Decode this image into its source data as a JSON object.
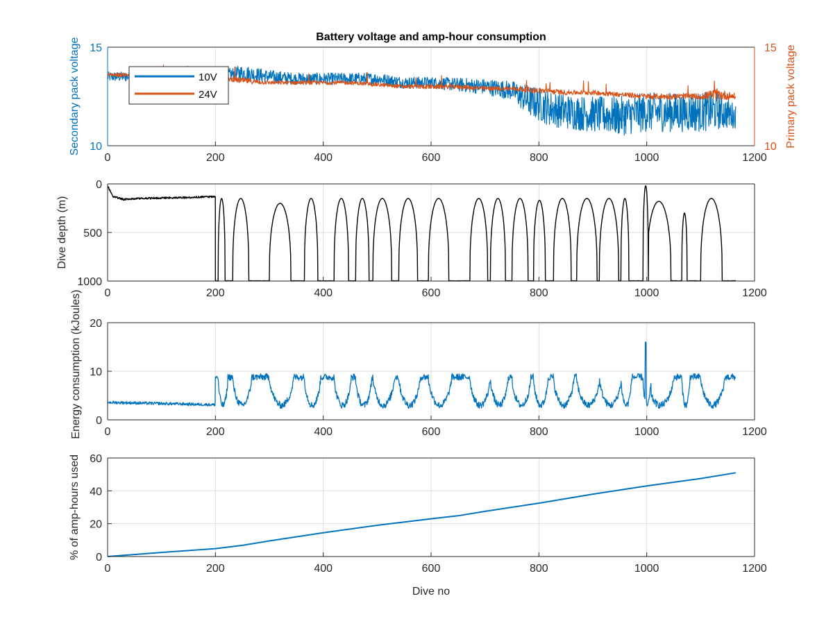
{
  "figure_title": "Battery voltage and amp-hour consumption",
  "colors": {
    "blue": "#0072BD",
    "orange": "#D95319",
    "black": "#000000",
    "axis": "#262626",
    "grid": "#dfdfdf"
  },
  "chart_data": [
    {
      "type": "line",
      "title": "Battery voltage and amp-hour consumption",
      "xlabel": "",
      "ylabel_left": "Secondary pack voltage",
      "ylabel_right": "Primary pack voltage",
      "xlim": [
        0,
        1200
      ],
      "ylim_left": [
        10,
        15
      ],
      "ylim_right": [
        10,
        15
      ],
      "xticks": [
        "0",
        "200",
        "400",
        "600",
        "800",
        "1000",
        "1200"
      ],
      "yticks_left": [
        "10",
        "15"
      ],
      "yticks_right": [
        "10",
        "15"
      ],
      "grid": true,
      "legend": {
        "placement": "top-left",
        "entries": [
          "10V",
          "24V"
        ]
      },
      "series": [
        {
          "name": "10V",
          "axis": "left",
          "color": "#0072BD",
          "x": [
            0,
            50,
            100,
            150,
            200,
            250,
            300,
            350,
            400,
            450,
            500,
            550,
            600,
            650,
            700,
            750,
            780,
            820,
            860,
            900,
            950,
            1000,
            1050,
            1100,
            1130,
            1165
          ],
          "y": [
            13.5,
            13.5,
            13.5,
            13.5,
            13.5,
            13.7,
            13.5,
            13.4,
            13.4,
            13.4,
            13.4,
            13.2,
            13.2,
            13.1,
            13.0,
            12.8,
            12.3,
            11.9,
            11.7,
            11.6,
            11.5,
            11.7,
            11.7,
            11.7,
            11.8,
            11.5
          ],
          "noise": [
            0.25,
            0.25,
            0.25,
            0.25,
            0.25,
            0.4,
            0.35,
            0.3,
            0.3,
            0.3,
            0.3,
            0.3,
            0.3,
            0.35,
            0.4,
            0.5,
            0.8,
            0.9,
            0.9,
            0.9,
            1.0,
            1.0,
            1.0,
            1.0,
            1.0,
            0.6
          ]
        },
        {
          "name": "24V",
          "axis": "right",
          "color": "#D95319",
          "x": [
            0,
            50,
            100,
            150,
            200,
            250,
            300,
            350,
            400,
            450,
            500,
            550,
            600,
            650,
            700,
            750,
            800,
            850,
            900,
            950,
            1000,
            1050,
            1100,
            1130,
            1165
          ],
          "y": [
            13.6,
            13.6,
            13.5,
            13.5,
            13.5,
            13.3,
            13.2,
            13.2,
            13.2,
            13.2,
            13.1,
            13.0,
            13.0,
            13.0,
            12.9,
            12.9,
            12.8,
            12.7,
            12.7,
            12.6,
            12.5,
            12.5,
            12.5,
            12.6,
            12.5
          ],
          "noise": [
            0.1,
            0.1,
            0.1,
            0.1,
            0.1,
            0.15,
            0.1,
            0.1,
            0.1,
            0.1,
            0.1,
            0.1,
            0.12,
            0.12,
            0.12,
            0.12,
            0.15,
            0.12,
            0.12,
            0.12,
            0.15,
            0.15,
            0.15,
            0.3,
            0.15
          ]
        }
      ]
    },
    {
      "type": "line",
      "title": "",
      "xlabel": "",
      "ylabel": "Dive depth (m)",
      "xlim": [
        0,
        1200
      ],
      "ylim": [
        1000,
        0
      ],
      "y_reversed": true,
      "xticks": [
        "0",
        "200",
        "400",
        "600",
        "800",
        "1000",
        "1200"
      ],
      "yticks": [
        "0",
        "500",
        "1000"
      ],
      "grid": true,
      "series": [
        {
          "name": "",
          "color": "#000000",
          "surface_segment": {
            "x": [
              0,
              10,
              30,
              60,
              100,
              150,
              200
            ],
            "y": [
              20,
              130,
              160,
              150,
              145,
              140,
              130
            ]
          },
          "dive_profile": {
            "shallow": 150,
            "deep": 1000
          },
          "dives": [
            {
              "start": 205,
              "end": 218,
              "min": 150
            },
            {
              "start": 232,
              "end": 262,
              "min": 150
            },
            {
              "start": 300,
              "end": 340,
              "min": 200
            },
            {
              "start": 365,
              "end": 390,
              "min": 150
            },
            {
              "start": 420,
              "end": 447,
              "min": 150
            },
            {
              "start": 460,
              "end": 485,
              "min": 150
            },
            {
              "start": 492,
              "end": 527,
              "min": 150
            },
            {
              "start": 540,
              "end": 575,
              "min": 150
            },
            {
              "start": 595,
              "end": 633,
              "min": 150
            },
            {
              "start": 672,
              "end": 705,
              "min": 150
            },
            {
              "start": 710,
              "end": 738,
              "min": 150
            },
            {
              "start": 750,
              "end": 780,
              "min": 150
            },
            {
              "start": 790,
              "end": 812,
              "min": 170
            },
            {
              "start": 827,
              "end": 860,
              "min": 150
            },
            {
              "start": 870,
              "end": 908,
              "min": 150
            },
            {
              "start": 912,
              "end": 948,
              "min": 150
            },
            {
              "start": 952,
              "end": 967,
              "min": 150
            },
            {
              "start": 993,
              "end": 1003,
              "min": 20
            },
            {
              "start": 1000,
              "end": 1045,
              "min": 180
            },
            {
              "start": 1065,
              "end": 1075,
              "min": 300
            },
            {
              "start": 1100,
              "end": 1140,
              "min": 150
            }
          ],
          "x_end": 1165
        }
      ]
    },
    {
      "type": "line",
      "title": "",
      "xlabel": "",
      "ylabel": "Energy consumption (kJoules)",
      "xlim": [
        0,
        1200
      ],
      "ylim": [
        0,
        20
      ],
      "xticks": [
        "0",
        "200",
        "400",
        "600",
        "800",
        "1000",
        "1200"
      ],
      "yticks": [
        "0",
        "10",
        "20"
      ],
      "grid": true,
      "series": [
        {
          "name": "",
          "color": "#0072BD",
          "baseline_segment": {
            "x": [
              0,
              200
            ],
            "y": [
              3.6,
              3.1
            ],
            "noise": 0.3
          },
          "active_range": [
            200,
            1165
          ],
          "high": 8.8,
          "low": 3.0,
          "spike": {
            "x": 998,
            "y": 16
          }
        }
      ]
    },
    {
      "type": "line",
      "title": "",
      "xlabel": "Dive no",
      "ylabel": "% of amp-hours used",
      "xlim": [
        0,
        1200
      ],
      "ylim": [
        0,
        60
      ],
      "xticks": [
        "0",
        "200",
        "400",
        "600",
        "800",
        "1000",
        "1200"
      ],
      "yticks": [
        "0",
        "20",
        "40",
        "60"
      ],
      "grid": true,
      "series": [
        {
          "name": "",
          "color": "#0072BD",
          "x": [
            0,
            100,
            200,
            250,
            300,
            400,
            500,
            600,
            650,
            700,
            800,
            900,
            1000,
            1100,
            1165
          ],
          "y": [
            0,
            2.5,
            4.8,
            6.8,
            9.5,
            14.5,
            19.0,
            23.0,
            24.8,
            27.5,
            32.5,
            38.0,
            43.0,
            47.5,
            51.0
          ]
        }
      ]
    }
  ]
}
